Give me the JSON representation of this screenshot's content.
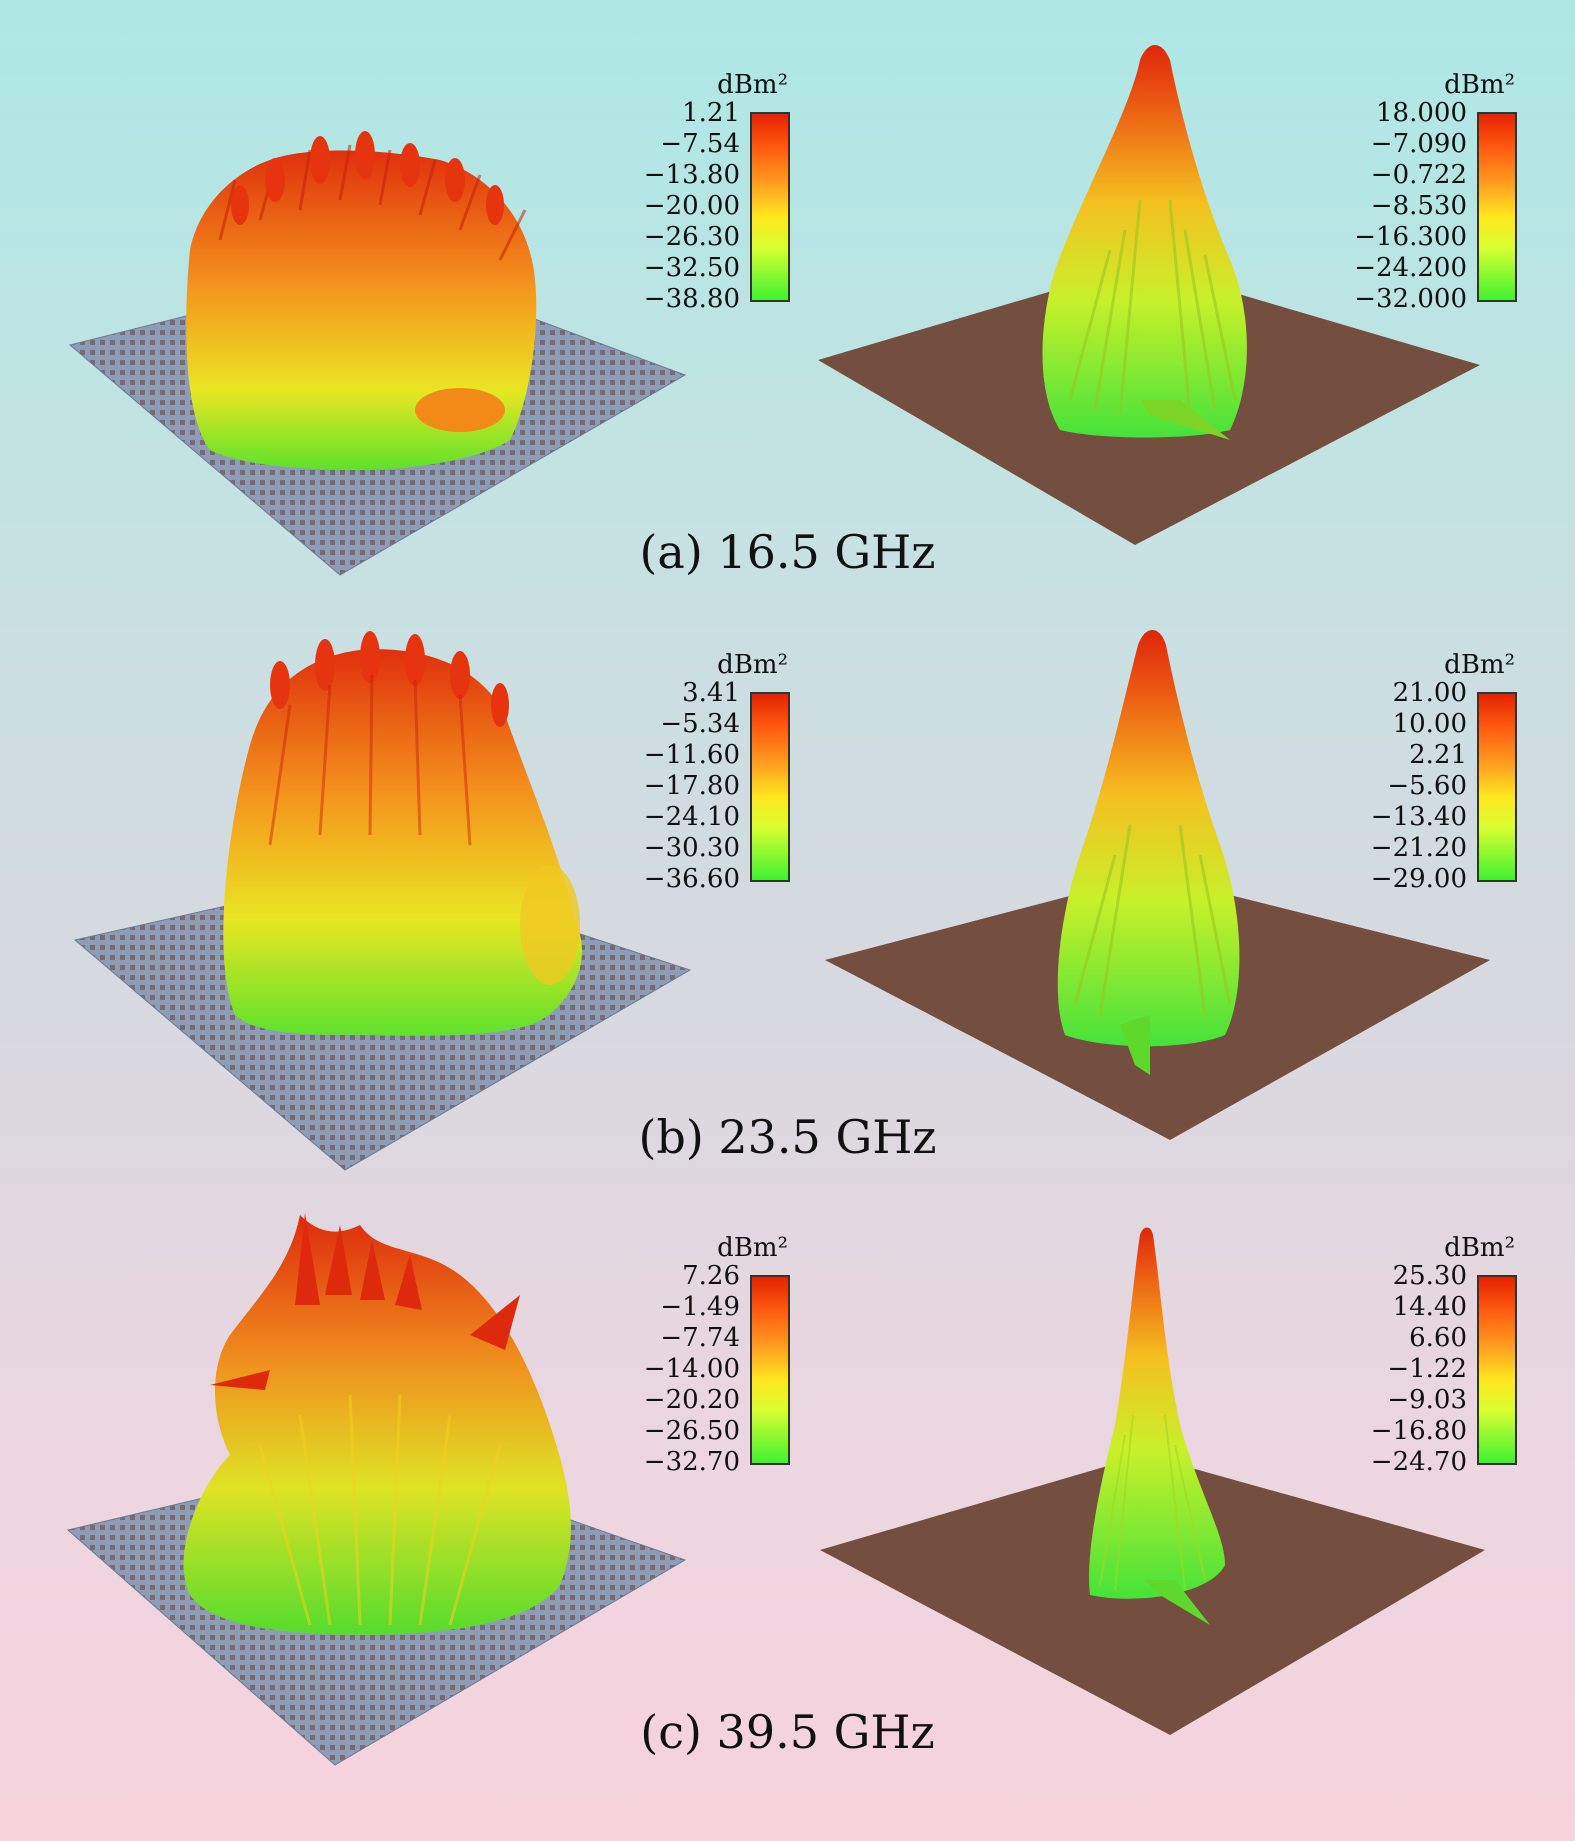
{
  "figures": [
    {
      "caption": "(a) 16.5 GHz",
      "left_colorbar": {
        "unit": "dBm²",
        "ticks": [
          "1.21",
          "−7.54",
          "−13.80",
          "−20.00",
          "−26.30",
          "−32.50",
          "−38.80"
        ]
      },
      "right_colorbar": {
        "unit": "dBm²",
        "ticks": [
          "18.000",
          "−7.090",
          "−0.722",
          "−8.530",
          "−16.300",
          "−24.200",
          "−32.000"
        ]
      }
    },
    {
      "caption": "(b) 23.5 GHz",
      "left_colorbar": {
        "unit": "dBm²",
        "ticks": [
          "3.41",
          "−5.34",
          "−11.60",
          "−17.80",
          "−24.10",
          "−30.30",
          "−36.60"
        ]
      },
      "right_colorbar": {
        "unit": "dBm²",
        "ticks": [
          "21.00",
          "10.00",
          "2.21",
          "−5.60",
          "−13.40",
          "−21.20",
          "−29.00"
        ]
      }
    },
    {
      "caption": "(c) 39.5 GHz",
      "left_colorbar": {
        "unit": "dBm²",
        "ticks": [
          "7.26",
          "−1.49",
          "−7.74",
          "−14.00",
          "−20.20",
          "−26.50",
          "−32.70"
        ]
      },
      "right_colorbar": {
        "unit": "dBm²",
        "ticks": [
          "25.30",
          "14.40",
          "6.60",
          "−1.22",
          "−9.03",
          "−16.80",
          "−24.70"
        ]
      }
    }
  ],
  "colors": {
    "plate_metasurface": "#8a9ab5",
    "plate_pec": "#744e3e",
    "lobe_red": "#e23a10",
    "lobe_yellow": "#f2d820",
    "lobe_green": "#4fe030"
  }
}
